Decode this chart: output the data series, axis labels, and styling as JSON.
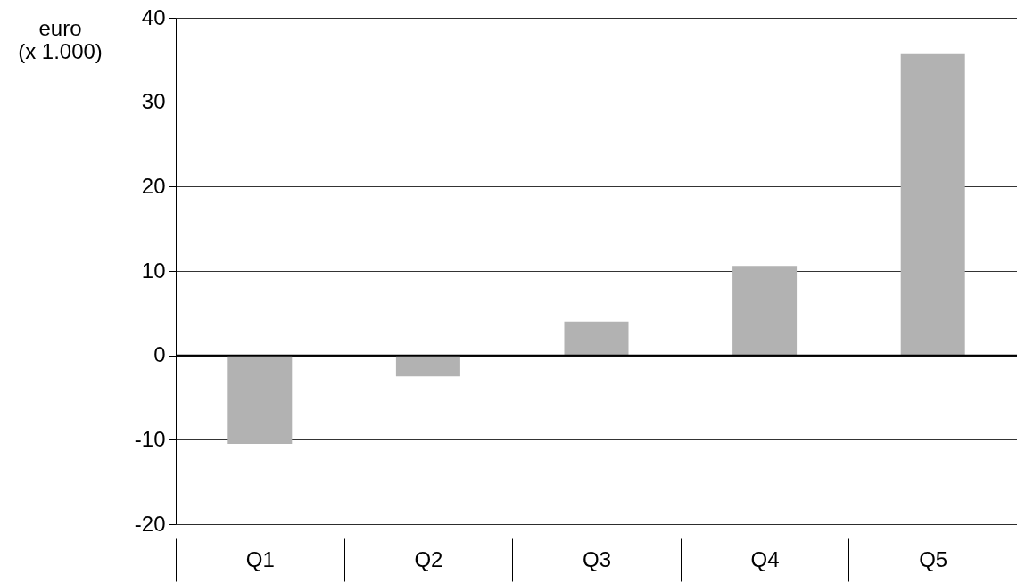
{
  "chart_data": {
    "type": "bar",
    "ylabel": "euro\n(x 1.000)",
    "categories": [
      "Q1",
      "Q2",
      "Q3",
      "Q4",
      "Q5"
    ],
    "values": [
      -10.5,
      -2.5,
      4.0,
      10.6,
      35.7
    ],
    "color": "#b2b2b2",
    "ylim": [
      -20,
      40
    ],
    "yticks": [
      -20,
      -10,
      0,
      10,
      20,
      30,
      40
    ],
    "ref_lines": [
      {
        "axis": "y",
        "value": 0,
        "color": "#000000"
      }
    ],
    "grid": "y"
  }
}
